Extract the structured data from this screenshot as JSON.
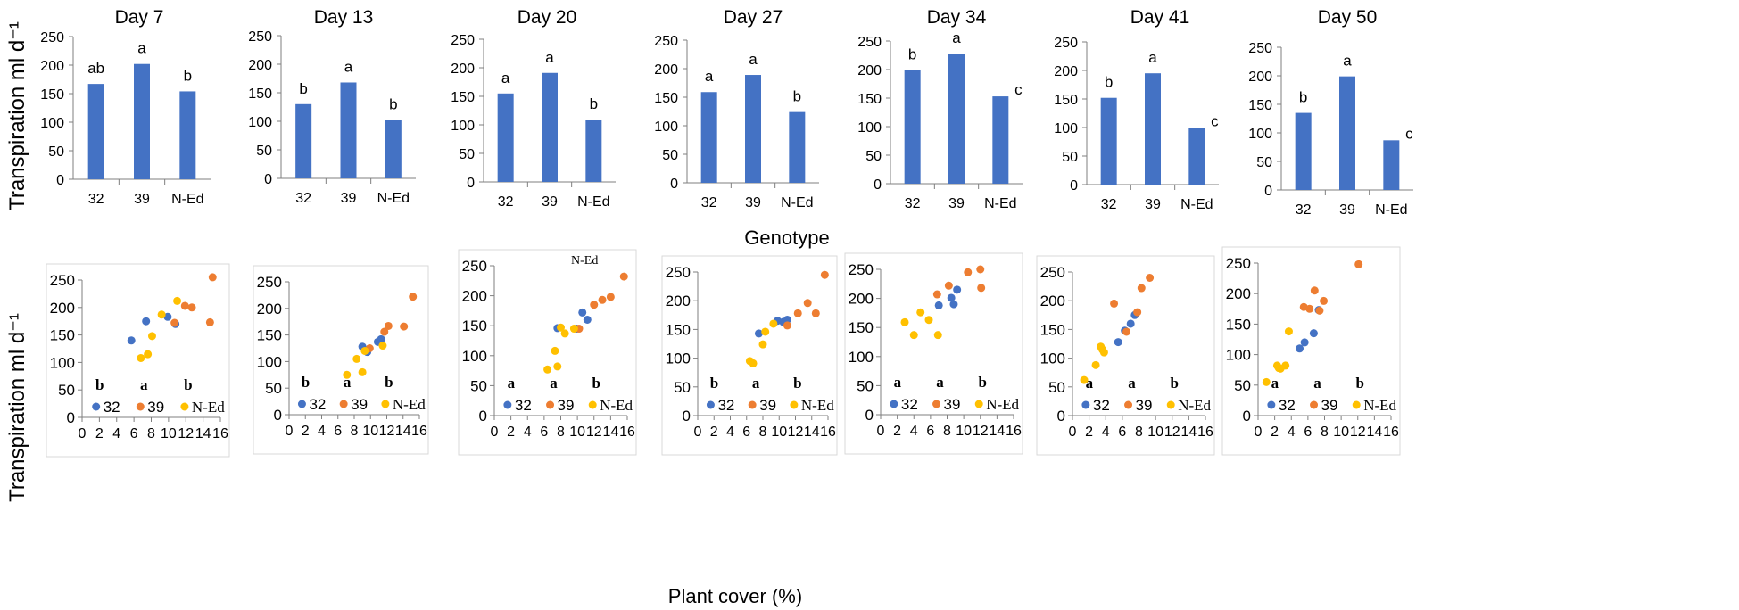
{
  "figure": {
    "y_axis_title_top": "Transpiration  ml d⁻¹",
    "y_axis_title_bottom": "Transpiration  ml d⁻¹",
    "x_axis_title_top": "Genotype",
    "x_axis_title_bottom": "Plant cover (%)",
    "stray_label": "N-Ed"
  },
  "colors": {
    "bar": "#4472C4",
    "g32": "#4472C4",
    "g39": "#ED7D31",
    "ned": "#FFC000",
    "axis": "#7f7f7f"
  },
  "chart_data": [
    {
      "type": "bar",
      "title": "Day 7",
      "categories": [
        "32",
        "39",
        "N-Ed"
      ],
      "values": [
        167,
        202,
        154
      ],
      "letters": [
        "ab",
        "a",
        "b"
      ],
      "ylim": [
        0,
        250
      ],
      "yticks": [
        0,
        50,
        100,
        150,
        200,
        250
      ],
      "xlabel": "Genotype",
      "ylabel": "Transpiration ml d-1"
    },
    {
      "type": "bar",
      "title": "Day 13",
      "categories": [
        "32",
        "39",
        "N-Ed"
      ],
      "values": [
        130,
        168,
        102
      ],
      "letters": [
        "b",
        "a",
        "b"
      ],
      "ylim": [
        0,
        250
      ],
      "yticks": [
        0,
        50,
        100,
        150,
        200,
        250
      ],
      "xlabel": "Genotype",
      "ylabel": "Transpiration ml d-1"
    },
    {
      "type": "bar",
      "title": "Day 20",
      "categories": [
        "32",
        "39",
        "N-Ed"
      ],
      "values": [
        155,
        191,
        109
      ],
      "letters": [
        "a",
        "a",
        "b"
      ],
      "ylim": [
        0,
        250
      ],
      "yticks": [
        0,
        50,
        100,
        150,
        200,
        250
      ],
      "xlabel": "Genotype",
      "ylabel": "Transpiration ml d-1"
    },
    {
      "type": "bar",
      "title": "Day 27",
      "categories": [
        "32",
        "39",
        "N-Ed"
      ],
      "values": [
        159,
        189,
        124
      ],
      "letters": [
        "a",
        "a",
        "b"
      ],
      "ylim": [
        0,
        250
      ],
      "yticks": [
        0,
        50,
        100,
        150,
        200,
        250
      ],
      "xlabel": "Genotype",
      "ylabel": "Transpiration ml d-1"
    },
    {
      "type": "bar",
      "title": "Day 34",
      "categories": [
        "32",
        "39",
        "N-Ed"
      ],
      "values": [
        199,
        228,
        153
      ],
      "letters": [
        "b",
        "a",
        "c"
      ],
      "ylim": [
        0,
        250
      ],
      "yticks": [
        0,
        50,
        100,
        150,
        200,
        250
      ],
      "xlabel": "Genotype",
      "ylabel": "Transpiration ml d-1"
    },
    {
      "type": "bar",
      "title": "Day 41",
      "categories": [
        "32",
        "39",
        "N-Ed"
      ],
      "values": [
        152,
        195,
        99
      ],
      "letters": [
        "b",
        "a",
        "c"
      ],
      "ylim": [
        0,
        250
      ],
      "yticks": [
        0,
        50,
        100,
        150,
        200,
        250
      ],
      "xlabel": "Genotype",
      "ylabel": "Transpiration ml d-1"
    },
    {
      "type": "bar",
      "title": "Day 50",
      "categories": [
        "32",
        "39",
        "N-Ed"
      ],
      "values": [
        135,
        199,
        87
      ],
      "letters": [
        "b",
        "a",
        "c"
      ],
      "ylim": [
        0,
        250
      ],
      "yticks": [
        0,
        50,
        100,
        150,
        200,
        250
      ],
      "xlabel": "Genotype",
      "ylabel": "Transpiration ml d-1"
    },
    {
      "type": "scatter",
      "day": "Day 7",
      "xlim": [
        0,
        16
      ],
      "ylim": [
        0,
        250
      ],
      "xticks": [
        0,
        2,
        4,
        6,
        8,
        10,
        12,
        14,
        16
      ],
      "yticks": [
        0,
        50,
        100,
        150,
        200,
        250
      ],
      "xlabel": "Plant cover (%)",
      "ylabel": "Transpiration ml d-1",
      "series": [
        {
          "name": "32",
          "letter": "b",
          "x": [
            5.7,
            7.4,
            9.9,
            10.8
          ],
          "y": [
            140,
            175,
            183,
            170
          ]
        },
        {
          "name": "39",
          "letter": "a",
          "x": [
            10.7,
            11.9,
            12.7,
            14.8,
            15.1
          ],
          "y": [
            172,
            203,
            200,
            173,
            255
          ]
        },
        {
          "name": "N-Ed",
          "letter": "b",
          "x": [
            6.8,
            7.6,
            8.1,
            9.2,
            11.0
          ],
          "y": [
            108,
            115,
            148,
            187,
            212
          ]
        }
      ]
    },
    {
      "type": "scatter",
      "day": "Day 13",
      "xlim": [
        0,
        16
      ],
      "ylim": [
        0,
        250
      ],
      "xticks": [
        0,
        2,
        4,
        6,
        8,
        10,
        12,
        14,
        16
      ],
      "yticks": [
        0,
        50,
        100,
        150,
        200,
        250
      ],
      "xlabel": "Plant cover (%)",
      "ylabel": "Transpiration ml d-1",
      "series": [
        {
          "name": "32",
          "letter": "b",
          "x": [
            9.0,
            9.6,
            10.9,
            11.3
          ],
          "y": [
            128,
            118,
            137,
            142
          ]
        },
        {
          "name": "39",
          "letter": "a",
          "x": [
            9.9,
            11.7,
            12.2,
            14.1,
            15.2
          ],
          "y": [
            125,
            156,
            167,
            166,
            222
          ]
        },
        {
          "name": "N-Ed",
          "letter": "b",
          "x": [
            7.1,
            8.3,
            9.0,
            9.3,
            11.5
          ],
          "y": [
            75,
            105,
            80,
            120,
            130
          ]
        }
      ]
    },
    {
      "type": "scatter",
      "day": "Day 20",
      "xlim": [
        0,
        16
      ],
      "ylim": [
        0,
        250
      ],
      "xticks": [
        0,
        2,
        4,
        6,
        8,
        10,
        12,
        14,
        16
      ],
      "yticks": [
        0,
        50,
        100,
        150,
        200,
        250
      ],
      "xlabel": "Plant cover (%)",
      "ylabel": "Transpiration ml d-1",
      "series": [
        {
          "name": "32",
          "letter": "a",
          "x": [
            7.6,
            9.9,
            10.6,
            11.2
          ],
          "y": [
            146,
            145,
            172,
            160
          ]
        },
        {
          "name": "39",
          "letter": "a",
          "x": [
            10.2,
            12.0,
            13.0,
            14.0,
            15.6
          ],
          "y": [
            145,
            185,
            193,
            198,
            232
          ]
        },
        {
          "name": "N-Ed",
          "letter": "b",
          "x": [
            6.4,
            7.3,
            7.6,
            8.0,
            8.5,
            9.6
          ],
          "y": [
            77,
            108,
            82,
            147,
            137,
            145
          ]
        }
      ]
    },
    {
      "type": "scatter",
      "day": "Day 27",
      "xlim": [
        0,
        16
      ],
      "ylim": [
        0,
        250
      ],
      "xticks": [
        0,
        2,
        4,
        6,
        8,
        10,
        12,
        14,
        16
      ],
      "yticks": [
        0,
        50,
        100,
        150,
        200,
        250
      ],
      "xlabel": "Plant cover (%)",
      "ylabel": "Transpiration ml d-1",
      "series": [
        {
          "name": "32",
          "letter": "b",
          "x": [
            7.5,
            9.8,
            10.5,
            11.0
          ],
          "y": [
            143,
            165,
            163,
            167
          ]
        },
        {
          "name": "39",
          "letter": "a",
          "x": [
            11.0,
            12.3,
            13.5,
            14.5,
            15.6
          ],
          "y": [
            157,
            178,
            196,
            178,
            245
          ]
        },
        {
          "name": "N-Ed",
          "letter": "b",
          "x": [
            6.4,
            6.8,
            8.0,
            8.3,
            9.3
          ],
          "y": [
            95,
            91,
            124,
            146,
            160
          ]
        }
      ]
    },
    {
      "type": "scatter",
      "day": "Day 34",
      "xlim": [
        0,
        16
      ],
      "ylim": [
        0,
        250
      ],
      "xticks": [
        0,
        2,
        4,
        6,
        8,
        10,
        12,
        14,
        16
      ],
      "yticks": [
        0,
        50,
        100,
        150,
        200,
        250
      ],
      "xlabel": "Plant cover (%)",
      "ylabel": "Transpiration ml d-1",
      "series": [
        {
          "name": "32",
          "letter": "a",
          "x": [
            7.0,
            8.5,
            8.8,
            9.2
          ],
          "y": [
            188,
            201,
            190,
            215
          ]
        },
        {
          "name": "39",
          "letter": "a",
          "x": [
            6.8,
            8.2,
            10.5,
            12.0,
            12.1
          ],
          "y": [
            207,
            222,
            245,
            250,
            218
          ]
        },
        {
          "name": "N-Ed",
          "letter": "b",
          "x": [
            2.9,
            4.0,
            4.8,
            5.8,
            6.9
          ],
          "y": [
            159,
            137,
            176,
            163,
            137
          ]
        }
      ]
    },
    {
      "type": "scatter",
      "day": "Day 41",
      "xlim": [
        0,
        16
      ],
      "ylim": [
        0,
        250
      ],
      "xticks": [
        0,
        2,
        4,
        6,
        8,
        10,
        12,
        14,
        16
      ],
      "yticks": [
        0,
        50,
        100,
        150,
        200,
        250
      ],
      "xlabel": "Plant cover (%)",
      "ylabel": "Transpiration ml d-1",
      "series": [
        {
          "name": "32",
          "letter": "a",
          "x": [
            5.5,
            6.3,
            7.0,
            7.5
          ],
          "y": [
            128,
            148,
            160,
            175
          ]
        },
        {
          "name": "39",
          "letter": "a",
          "x": [
            5.0,
            6.5,
            7.8,
            8.3,
            9.3
          ],
          "y": [
            195,
            146,
            180,
            222,
            240
          ]
        },
        {
          "name": "N-Ed",
          "letter": "b",
          "x": [
            1.4,
            2.8,
            3.4,
            3.6,
            3.8
          ],
          "y": [
            62,
            88,
            120,
            115,
            110
          ]
        }
      ]
    },
    {
      "type": "scatter",
      "day": "Day 50",
      "xlim": [
        0,
        16
      ],
      "ylim": [
        0,
        250
      ],
      "xticks": [
        0,
        2,
        4,
        6,
        8,
        10,
        12,
        14,
        16
      ],
      "yticks": [
        0,
        50,
        100,
        150,
        200,
        250
      ],
      "xlabel": "Plant cover (%)",
      "ylabel": "Transpiration ml d-1",
      "series": [
        {
          "name": "32",
          "letter": "a",
          "x": [
            5.0,
            5.6,
            6.7,
            7.3
          ],
          "y": [
            110,
            120,
            135,
            173
          ]
        },
        {
          "name": "39",
          "letter": "a",
          "x": [
            5.5,
            6.2,
            6.8,
            7.4,
            7.9,
            12.1
          ],
          "y": [
            178,
            175,
            205,
            172,
            188,
            248
          ]
        },
        {
          "name": "N-Ed",
          "letter": "b",
          "x": [
            1.0,
            2.3,
            2.5,
            2.7,
            3.3,
            3.7
          ],
          "y": [
            55,
            82,
            78,
            77,
            82,
            138
          ]
        }
      ]
    }
  ]
}
